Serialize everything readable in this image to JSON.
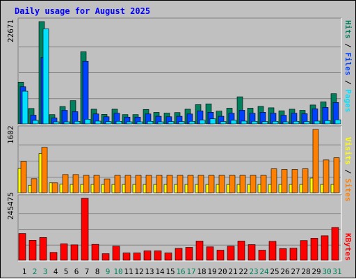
{
  "title": "Daily usage for August 2025",
  "colors": {
    "background": "#c0c0c0",
    "hits": "#00805c",
    "files": "#0040ff",
    "pages": "#00e0ff",
    "visits": "#ffff00",
    "sites": "#ff8000",
    "kbytes": "#ff0000",
    "title": "#0000ff",
    "weekday_label": "#000000",
    "weekend_label": "#00805c"
  },
  "chart_data": [
    {
      "type": "bar",
      "panel": "hits-files-pages",
      "ymax_label": "22671",
      "ylim": [
        0,
        22671
      ],
      "legend": {
        "pages": "Pages",
        "sep1": " / ",
        "files": "Files",
        "sep2": " / ",
        "hits": "Hits"
      },
      "categories": [
        "1",
        "2",
        "3",
        "4",
        "5",
        "6",
        "7",
        "8",
        "9",
        "10",
        "11",
        "12",
        "13",
        "14",
        "15",
        "16",
        "17",
        "18",
        "19",
        "20",
        "21",
        "22",
        "23",
        "24",
        "25",
        "26",
        "27",
        "28",
        "29",
        "30",
        "31"
      ],
      "series": [
        {
          "name": "Hits",
          "values": [
            9220,
            3410,
            22671,
            2050,
            3850,
            5150,
            15990,
            3250,
            2100,
            3250,
            2050,
            2050,
            3200,
            2550,
            2390,
            2510,
            3250,
            4260,
            4430,
            2830,
            3480,
            6000,
            3480,
            3890,
            3560,
            2900,
            3250,
            3000,
            4180,
            4890,
            6680
          ]
        },
        {
          "name": "Files",
          "values": [
            8220,
            1930,
            14700,
            1310,
            3000,
            2700,
            13850,
            2200,
            1580,
            2360,
            1500,
            1500,
            2200,
            1690,
            1580,
            1690,
            2190,
            2880,
            2570,
            1690,
            2360,
            3010,
            2360,
            2570,
            2360,
            1900,
            2360,
            2250,
            3330,
            3640,
            4730
          ]
        },
        {
          "name": "Pages",
          "values": [
            7240,
            770,
            21080,
            460,
            460,
            570,
            1020,
            620,
            510,
            570,
            460,
            460,
            570,
            460,
            510,
            510,
            570,
            820,
            1120,
            520,
            790,
            620,
            570,
            520,
            570,
            460,
            570,
            520,
            620,
            730,
            900
          ]
        }
      ]
    },
    {
      "type": "bar",
      "panel": "visits-sites",
      "ymax_label": "1602",
      "ylim": [
        0,
        1602
      ],
      "legend": {
        "sites": "Sites",
        "sep": " / ",
        "visits": "Visits"
      },
      "categories": [
        "1",
        "2",
        "3",
        "4",
        "5",
        "6",
        "7",
        "8",
        "9",
        "10",
        "11",
        "12",
        "13",
        "14",
        "15",
        "16",
        "17",
        "18",
        "19",
        "20",
        "21",
        "22",
        "23",
        "24",
        "25",
        "26",
        "27",
        "28",
        "29",
        "30",
        "31"
      ],
      "series": [
        {
          "name": "Visits",
          "values": [
            615,
            190,
            995,
            250,
            215,
            210,
            210,
            210,
            210,
            210,
            210,
            210,
            210,
            210,
            210,
            210,
            210,
            210,
            210,
            210,
            210,
            210,
            210,
            210,
            210,
            210,
            210,
            210,
            370,
            210,
            210
          ]
        },
        {
          "name": "Sites",
          "values": [
            790,
            355,
            1150,
            250,
            460,
            460,
            440,
            440,
            350,
            440,
            440,
            440,
            440,
            440,
            440,
            440,
            440,
            440,
            440,
            440,
            440,
            440,
            440,
            440,
            605,
            590,
            590,
            605,
            1602,
            830,
            885
          ]
        }
      ]
    },
    {
      "type": "bar",
      "panel": "kbytes",
      "ymax_label": "245475",
      "ylim": [
        0,
        245475
      ],
      "legend": {
        "kbytes": "KBytes"
      },
      "categories": [
        "1",
        "2",
        "3",
        "4",
        "5",
        "6",
        "7",
        "8",
        "9",
        "10",
        "11",
        "12",
        "13",
        "14",
        "15",
        "16",
        "17",
        "18",
        "19",
        "20",
        "21",
        "22",
        "23",
        "24",
        "25",
        "26",
        "27",
        "28",
        "29",
        "30",
        "31"
      ],
      "series": [
        {
          "name": "KBytes",
          "values": [
            106000,
            79000,
            90000,
            31000,
            65000,
            61000,
            245475,
            63000,
            26000,
            56000,
            29000,
            29000,
            37000,
            37000,
            29000,
            47000,
            51000,
            76000,
            53000,
            40000,
            56000,
            76000,
            62000,
            40000,
            75000,
            46000,
            48000,
            78000,
            87000,
            97000,
            130000
          ]
        }
      ]
    }
  ],
  "day_labels": [
    "1",
    "2",
    "3",
    "4",
    "5",
    "6",
    "7",
    "8",
    "9",
    "10",
    "11",
    "12",
    "13",
    "14",
    "15",
    "16",
    "17",
    "18",
    "19",
    "20",
    "21",
    "22",
    "23",
    "24",
    "25",
    "26",
    "27",
    "28",
    "29",
    "30",
    "31"
  ],
  "weekend_days": [
    2,
    3,
    9,
    10,
    16,
    17,
    23,
    24,
    30,
    31
  ]
}
